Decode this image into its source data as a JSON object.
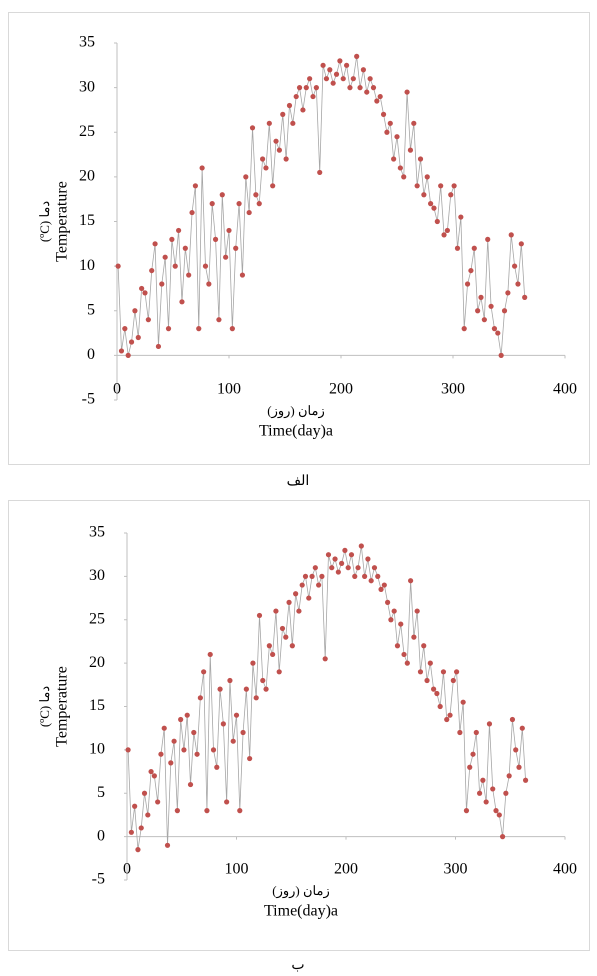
{
  "chart_data": [
    {
      "type": "line",
      "caption": "الف",
      "xlabel_fa": "زمان (روز)",
      "xlabel": "Time(day)a",
      "ylabel": "Temperature",
      "ylabel_fa": "دما (ºC)",
      "xlim": [
        0,
        400
      ],
      "ylim": [
        -5,
        35
      ],
      "xticks": [
        0,
        100,
        200,
        300,
        400
      ],
      "yticks": [
        -5,
        0,
        5,
        10,
        15,
        20,
        25,
        30,
        35
      ],
      "line_color": "#a6a6a6",
      "marker_color": "#c0504d",
      "x": [
        1,
        4,
        7,
        10,
        13,
        16,
        19,
        22,
        25,
        28,
        31,
        34,
        37,
        40,
        43,
        46,
        49,
        52,
        55,
        58,
        61,
        64,
        67,
        70,
        73,
        76,
        79,
        82,
        85,
        88,
        91,
        94,
        97,
        100,
        103,
        106,
        109,
        112,
        115,
        118,
        121,
        124,
        127,
        130,
        133,
        136,
        139,
        142,
        145,
        148,
        151,
        154,
        157,
        160,
        163,
        166,
        169,
        172,
        175,
        178,
        181,
        184,
        187,
        190,
        193,
        196,
        199,
        202,
        205,
        208,
        211,
        214,
        217,
        220,
        223,
        226,
        229,
        232,
        235,
        238,
        241,
        244,
        247,
        250,
        253,
        256,
        259,
        262,
        265,
        268,
        271,
        274,
        277,
        280,
        283,
        286,
        289,
        292,
        295,
        298,
        301,
        304,
        307,
        310,
        313,
        316,
        319,
        322,
        325,
        328,
        331,
        334,
        337,
        340,
        343,
        346,
        349,
        352,
        355,
        358,
        361,
        364
      ],
      "values": [
        10,
        0.5,
        3,
        0,
        1.5,
        5,
        2,
        7.5,
        7,
        4,
        9.5,
        12.5,
        1,
        8,
        11,
        3,
        13,
        10,
        14,
        6,
        12,
        9,
        16,
        19,
        3,
        21,
        10,
        8,
        17,
        13,
        4,
        18,
        11,
        14,
        3,
        12,
        17,
        9,
        20,
        16,
        25.5,
        18,
        17,
        22,
        21,
        26,
        19,
        24,
        23,
        27,
        22,
        28,
        26,
        29,
        30,
        27.5,
        30,
        31,
        29,
        30,
        20.5,
        32.5,
        31,
        32,
        30.5,
        31.5,
        33,
        31,
        32.5,
        30,
        31,
        33.5,
        30,
        32,
        29.5,
        31,
        30,
        28.5,
        29,
        27,
        25,
        26,
        22,
        24.5,
        21,
        20,
        29.5,
        23,
        26,
        19,
        22,
        18,
        20,
        17,
        16.5,
        15,
        19,
        13.5,
        14,
        18,
        19,
        12,
        15.5,
        3,
        8,
        9.5,
        12,
        5,
        6.5,
        4,
        13,
        5.5,
        3,
        2.5,
        0,
        5,
        7,
        13.5,
        10,
        8,
        12.5,
        6.5
      ]
    },
    {
      "type": "line",
      "caption": "ب",
      "xlabel_fa": "زمان (روز)",
      "xlabel": "Time(day)a",
      "ylabel": "Temperature",
      "ylabel_fa": "دما (ºC)",
      "xlim": [
        0,
        400
      ],
      "ylim": [
        -5,
        35
      ],
      "xticks": [
        0,
        100,
        200,
        300,
        400
      ],
      "yticks": [
        -5,
        0,
        5,
        10,
        15,
        20,
        25,
        30,
        35
      ],
      "line_color": "#a6a6a6",
      "marker_color": "#c0504d",
      "x": [
        1,
        4,
        7,
        10,
        13,
        16,
        19,
        22,
        25,
        28,
        31,
        34,
        37,
        40,
        43,
        46,
        49,
        52,
        55,
        58,
        61,
        64,
        67,
        70,
        73,
        76,
        79,
        82,
        85,
        88,
        91,
        94,
        97,
        100,
        103,
        106,
        109,
        112,
        115,
        118,
        121,
        124,
        127,
        130,
        133,
        136,
        139,
        142,
        145,
        148,
        151,
        154,
        157,
        160,
        163,
        166,
        169,
        172,
        175,
        178,
        181,
        184,
        187,
        190,
        193,
        196,
        199,
        202,
        205,
        208,
        211,
        214,
        217,
        220,
        223,
        226,
        229,
        232,
        235,
        238,
        241,
        244,
        247,
        250,
        253,
        256,
        259,
        262,
        265,
        268,
        271,
        274,
        277,
        280,
        283,
        286,
        289,
        292,
        295,
        298,
        301,
        304,
        307,
        310,
        313,
        316,
        319,
        322,
        325,
        328,
        331,
        334,
        337,
        340,
        343,
        346,
        349,
        352,
        355,
        358,
        361,
        364
      ],
      "values": [
        10,
        0.5,
        3.5,
        -1.5,
        1,
        5,
        2.5,
        7.5,
        7,
        4,
        9.5,
        12.5,
        -1,
        8.5,
        11,
        3,
        13.5,
        10,
        14,
        6,
        12,
        9.5,
        16,
        19,
        3,
        21,
        10,
        8,
        17,
        13,
        4,
        18,
        11,
        14,
        3,
        12,
        17,
        9,
        20,
        16,
        25.5,
        18,
        17,
        22,
        21,
        26,
        19,
        24,
        23,
        27,
        22,
        28,
        26,
        29,
        30,
        27.5,
        30,
        31,
        29,
        30,
        20.5,
        32.5,
        31,
        32,
        30.5,
        31.5,
        33,
        31,
        32.5,
        30,
        31,
        33.5,
        30,
        32,
        29.5,
        31,
        30,
        28.5,
        29,
        27,
        25,
        26,
        22,
        24.5,
        21,
        20,
        29.5,
        23,
        26,
        19,
        22,
        18,
        20,
        17,
        16.5,
        15,
        19,
        13.5,
        14,
        18,
        19,
        12,
        15.5,
        3,
        8,
        9.5,
        12,
        5,
        6.5,
        4,
        13,
        5.5,
        3,
        2.5,
        0,
        5,
        7,
        13.5,
        10,
        8,
        12.5,
        6.5
      ]
    }
  ]
}
